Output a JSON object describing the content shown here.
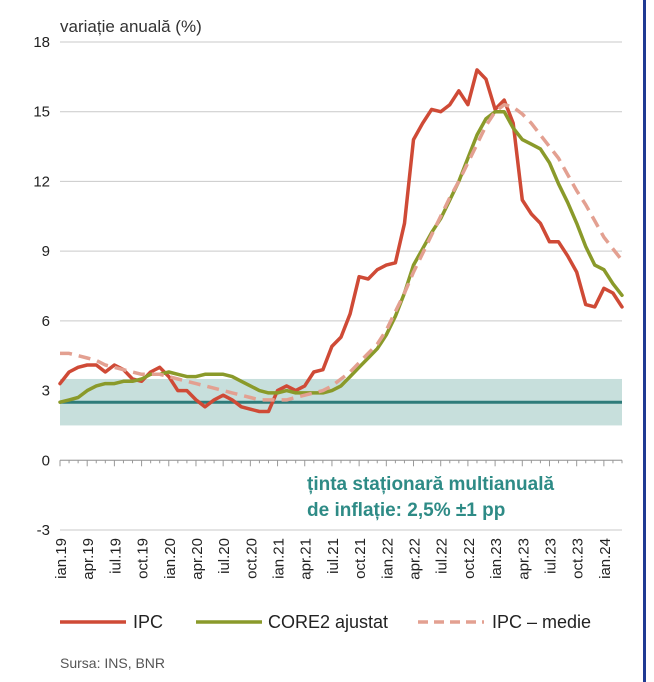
{
  "chart_data": {
    "type": "line",
    "ylabel": "variație anuală (%)",
    "ylim": [
      -3,
      18
    ],
    "yticks": [
      -3,
      0,
      3,
      6,
      9,
      12,
      15,
      18
    ],
    "xticks": [
      "ian.19",
      "apr.19",
      "iul.19",
      "oct.19",
      "ian.20",
      "apr.20",
      "iul.20",
      "oct.20",
      "ian.21",
      "apr.21",
      "iul.21",
      "oct.21",
      "ian.22",
      "apr.22",
      "iul.22",
      "oct.22",
      "ian.23",
      "apr.23",
      "iul.23",
      "oct.23",
      "ian.24"
    ],
    "target_band": {
      "center": 2.5,
      "low": 1.5,
      "high": 3.5,
      "color": "#c7dfdc",
      "line_color": "#2e7c7a"
    },
    "annotation": [
      "ținta staționară multianuală",
      "de inflație: 2,5% ±1 pp"
    ],
    "series": [
      {
        "name": "IPC",
        "color": "#cf4a36",
        "dash": false,
        "values": [
          3.3,
          3.8,
          4.0,
          4.1,
          4.1,
          3.8,
          4.1,
          3.9,
          3.5,
          3.4,
          3.8,
          4.0,
          3.6,
          3.0,
          3.0,
          2.6,
          2.3,
          2.6,
          2.8,
          2.6,
          2.3,
          2.2,
          2.1,
          2.1,
          3.0,
          3.2,
          3.0,
          3.2,
          3.8,
          3.9,
          4.9,
          5.3,
          6.3,
          7.9,
          7.8,
          8.2,
          8.4,
          8.5,
          10.2,
          13.8,
          14.5,
          15.1,
          15.0,
          15.3,
          15.9,
          15.3,
          16.8,
          16.4,
          15.1,
          15.5,
          14.5,
          11.2,
          10.6,
          10.2,
          9.4,
          9.4,
          8.8,
          8.1,
          6.7,
          6.6,
          7.4,
          7.2,
          6.6
        ]
      },
      {
        "name": "CORE2 ajustat",
        "color": "#8a9a2a",
        "dash": false,
        "values": [
          2.5,
          2.6,
          2.7,
          3.0,
          3.2,
          3.3,
          3.3,
          3.4,
          3.4,
          3.5,
          3.7,
          3.7,
          3.8,
          3.7,
          3.6,
          3.6,
          3.7,
          3.7,
          3.7,
          3.6,
          3.4,
          3.2,
          3.0,
          2.9,
          2.9,
          3.0,
          2.9,
          2.9,
          2.9,
          2.9,
          3.0,
          3.2,
          3.6,
          4.0,
          4.4,
          4.8,
          5.4,
          6.2,
          7.2,
          8.4,
          9.1,
          9.8,
          10.4,
          11.2,
          12.0,
          13.0,
          14.0,
          14.7,
          15.0,
          15.0,
          14.3,
          13.8,
          13.6,
          13.4,
          12.8,
          11.9,
          11.1,
          10.2,
          9.2,
          8.4,
          8.2,
          7.6,
          7.1
        ]
      },
      {
        "name": "IPC – medie",
        "color": "#e3a091",
        "dash": true,
        "values": [
          4.6,
          4.6,
          4.5,
          4.4,
          4.3,
          4.1,
          4.0,
          3.9,
          3.8,
          3.7,
          3.7,
          3.7,
          3.6,
          3.5,
          3.4,
          3.3,
          3.2,
          3.1,
          3.0,
          2.9,
          2.8,
          2.7,
          2.6,
          2.6,
          2.6,
          2.6,
          2.7,
          2.8,
          2.9,
          3.0,
          3.2,
          3.5,
          3.8,
          4.2,
          4.6,
          5.0,
          5.6,
          6.4,
          7.2,
          8.1,
          8.9,
          9.7,
          10.5,
          11.3,
          12.0,
          12.8,
          13.6,
          14.4,
          15.0,
          15.3,
          15.2,
          14.9,
          14.5,
          14.0,
          13.5,
          13.0,
          12.3,
          11.6,
          11.0,
          10.3,
          9.6,
          9.1,
          8.6
        ]
      }
    ]
  },
  "source": "Sursa: INS, BNR"
}
